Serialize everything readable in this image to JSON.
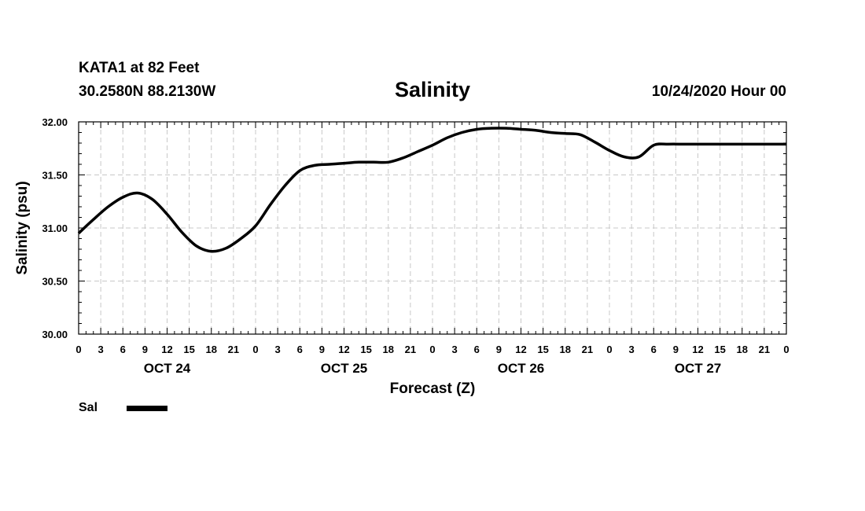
{
  "header": {
    "station": "KATA1 at 82 Feet",
    "coords": "30.2580N 88.2130W",
    "title": "Salinity",
    "stamp": "10/24/2020 Hour 00"
  },
  "legend": {
    "label": "Sal"
  },
  "colors": {
    "line": "#000000",
    "grid": "#c8c8c8",
    "background": "#ffffff"
  },
  "chart_data": {
    "type": "line",
    "title": "Salinity",
    "xlabel": "Forecast (Z)",
    "ylabel": "Salinity (psu)",
    "ylim": [
      30.0,
      32.0
    ],
    "yticks": [
      "30.00",
      "30.50",
      "31.00",
      "31.50",
      "32.00"
    ],
    "xlim": [
      0,
      96
    ],
    "xtick_labels": [
      "0",
      "3",
      "6",
      "9",
      "12",
      "15",
      "18",
      "21",
      "0",
      "3",
      "6",
      "9",
      "12",
      "15",
      "18",
      "21",
      "0",
      "3",
      "6",
      "9",
      "12",
      "15",
      "18",
      "21",
      "0",
      "3",
      "6",
      "9",
      "12",
      "15",
      "18",
      "21",
      "0"
    ],
    "day_labels": [
      "OCT 24",
      "OCT 25",
      "OCT 26",
      "OCT 27"
    ],
    "grid": true,
    "series": [
      {
        "name": "Sal",
        "x": [
          0,
          2,
          4,
          6,
          8,
          10,
          12,
          14,
          16,
          18,
          20,
          22,
          24,
          26,
          28,
          30,
          32,
          34,
          36,
          38,
          40,
          42,
          44,
          46,
          48,
          50,
          52,
          54,
          56,
          58,
          60,
          62,
          64,
          66,
          68,
          70,
          72,
          74,
          76,
          78,
          80,
          82,
          84,
          86,
          88,
          90,
          92,
          94,
          96
        ],
        "values": [
          30.95,
          31.08,
          31.2,
          31.29,
          31.33,
          31.27,
          31.13,
          30.96,
          30.83,
          30.78,
          30.81,
          30.9,
          31.02,
          31.22,
          31.4,
          31.54,
          31.59,
          31.6,
          31.61,
          31.62,
          31.62,
          31.62,
          31.66,
          31.72,
          31.78,
          31.85,
          31.9,
          31.93,
          31.94,
          31.94,
          31.93,
          31.92,
          31.9,
          31.89,
          31.88,
          31.81,
          31.73,
          31.67,
          31.67,
          31.78,
          31.79,
          31.79,
          31.79,
          31.79,
          31.79,
          31.79,
          31.79,
          31.79,
          31.79
        ]
      }
    ]
  }
}
